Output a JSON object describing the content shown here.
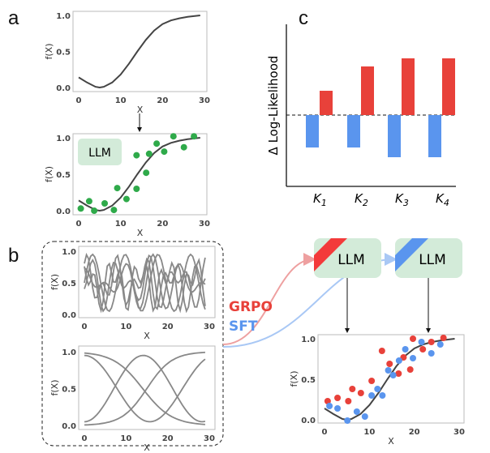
{
  "panels": {
    "a": "a",
    "b": "b",
    "c": "c"
  },
  "llm_label": "LLM",
  "methods": {
    "grpo": "GRPO",
    "sft": "SFT"
  },
  "colors": {
    "grpo": "#e8413a",
    "sft": "#5a95ee",
    "llm_box": "#d3ebd9",
    "green": "#2faa4a",
    "curve": "#444444"
  },
  "axes": {
    "x_label": "X",
    "y_label": "f(X)",
    "x_ticks": [
      "0",
      "10",
      "20",
      "30"
    ],
    "y_ticks": [
      "0.0",
      "0.5",
      "1.0"
    ]
  },
  "true_curve": {
    "x": [
      0,
      2,
      4,
      5,
      6,
      8,
      10,
      12,
      14,
      16,
      18,
      20,
      22,
      24,
      26,
      29
    ],
    "y": [
      0.14,
      0.07,
      0.01,
      0,
      0.01,
      0.07,
      0.18,
      0.33,
      0.5,
      0.66,
      0.79,
      0.88,
      0.93,
      0.96,
      0.98,
      1.0
    ]
  },
  "llm_points": {
    "x": [
      0.5,
      2.5,
      3.7,
      6.2,
      8.4,
      9.2,
      11.4,
      13.8,
      13.8,
      16.1,
      16.8,
      18.6,
      20.4,
      22.6,
      25.1,
      27.5
    ],
    "y": [
      0.03,
      0.13,
      0,
      0.1,
      0.01,
      0.31,
      0.16,
      0.3,
      0.76,
      0.52,
      0.78,
      0.92,
      0.81,
      1.02,
      0.87,
      1.02
    ]
  },
  "grpo_points": {
    "x": [
      0.7,
      2.9,
      5.3,
      6.2,
      8.1,
      10.5,
      12.8,
      14.5,
      16.5,
      17.6,
      19.1,
      19.7,
      21.9,
      23.8,
      26.5
    ],
    "y": [
      0.23,
      0.27,
      0.23,
      0.38,
      0.33,
      0.48,
      0.85,
      0.69,
      0.57,
      0.77,
      0.62,
      1.0,
      0.87,
      0.96,
      1.01
    ],
    "color": "#e8413a"
  },
  "sft_points": {
    "x": [
      1.1,
      2.9,
      5.1,
      7.2,
      9.0,
      10.5,
      11.8,
      12.9,
      14.2,
      15.3,
      16.6,
      18.0,
      19.7,
      21.6,
      23.8,
      25.8
    ],
    "y": [
      0.17,
      0.14,
      -0.01,
      0.1,
      0.04,
      0.3,
      0.38,
      0.3,
      0.61,
      0.55,
      0.73,
      0.87,
      0.76,
      0.96,
      0.82,
      0.93
    ]
  },
  "chart_data": {
    "type": "bar",
    "ylabel": "Δ Log-Likelihood",
    "categories": [
      "K",
      "K",
      "K",
      "K"
    ],
    "subscripts": [
      "1",
      "2",
      "3",
      "4"
    ],
    "series": [
      {
        "name": "GRPO",
        "color": "#e8413a",
        "values": [
          0.3,
          0.6,
          0.7,
          0.7
        ]
      },
      {
        "name": "SFT",
        "color": "#5a95ee",
        "values": [
          -0.4,
          -0.4,
          -0.52,
          -0.52
        ]
      }
    ],
    "baseline": 0
  }
}
